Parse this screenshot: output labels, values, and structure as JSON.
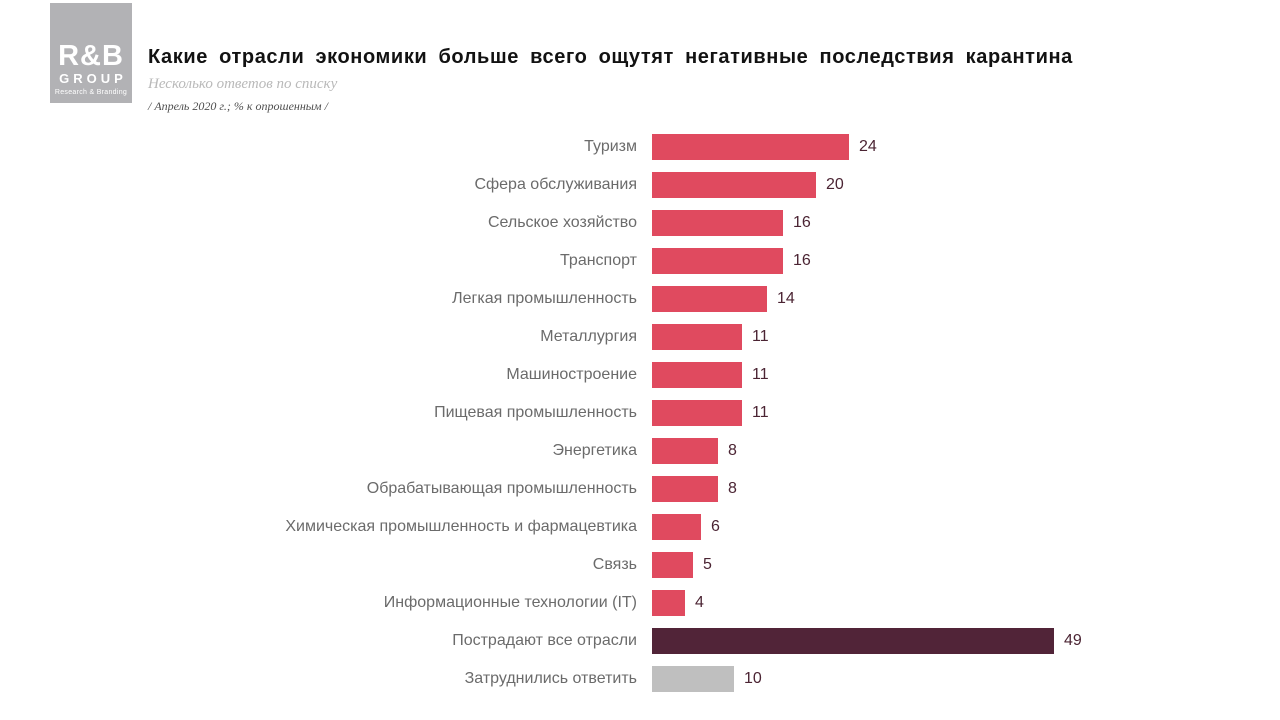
{
  "header": {
    "logo": {
      "name": "R&B",
      "group": "GROUP",
      "tagline": "Research & Branding"
    },
    "title": "Какие отрасли экономики больше всего ощутят негативные последствия карантина",
    "subtitle": "Несколько ответов по списку",
    "note": "/ Апрель 2020 г.; % к опрошенным /"
  },
  "colors": {
    "bar_default": "#e04a5f",
    "bar_highlight": "#512438",
    "bar_neutral": "#bfbfbf",
    "value_text": "#4b2433",
    "label_text": "#6b6b6b",
    "logo_bg": "#b2b2b5"
  },
  "chart_data": {
    "type": "bar",
    "orientation": "horizontal",
    "title": "Какие отрасли экономики больше всего ощутят негативные последствия карантина",
    "subtitle": "Несколько ответов по списку",
    "note": "/ Апрель 2020 г.; % к опрошенным /",
    "unit": "% к опрошенным",
    "value_range": [
      0,
      49
    ],
    "grid": false,
    "legend": false,
    "data_labels": true,
    "categories": [
      "Туризм",
      "Сфера обслуживания",
      "Сельское хозяйство",
      "Транспорт",
      "Легкая промышленность",
      "Металлургия",
      "Машиностроение",
      "Пищевая промышленность",
      "Энергетика",
      "Обрабатывающая промышленность",
      "Химическая промышленность  и фармацевтика",
      "Связь",
      "Информационные технологии (IT)",
      "Пострадают все отрасли",
      "Затруднились ответить"
    ],
    "values": [
      24,
      20,
      16,
      16,
      14,
      11,
      11,
      11,
      8,
      8,
      6,
      5,
      4,
      49,
      10
    ],
    "bar_color_roles": [
      "default",
      "default",
      "default",
      "default",
      "default",
      "default",
      "default",
      "default",
      "default",
      "default",
      "default",
      "default",
      "default",
      "highlight",
      "neutral"
    ]
  }
}
